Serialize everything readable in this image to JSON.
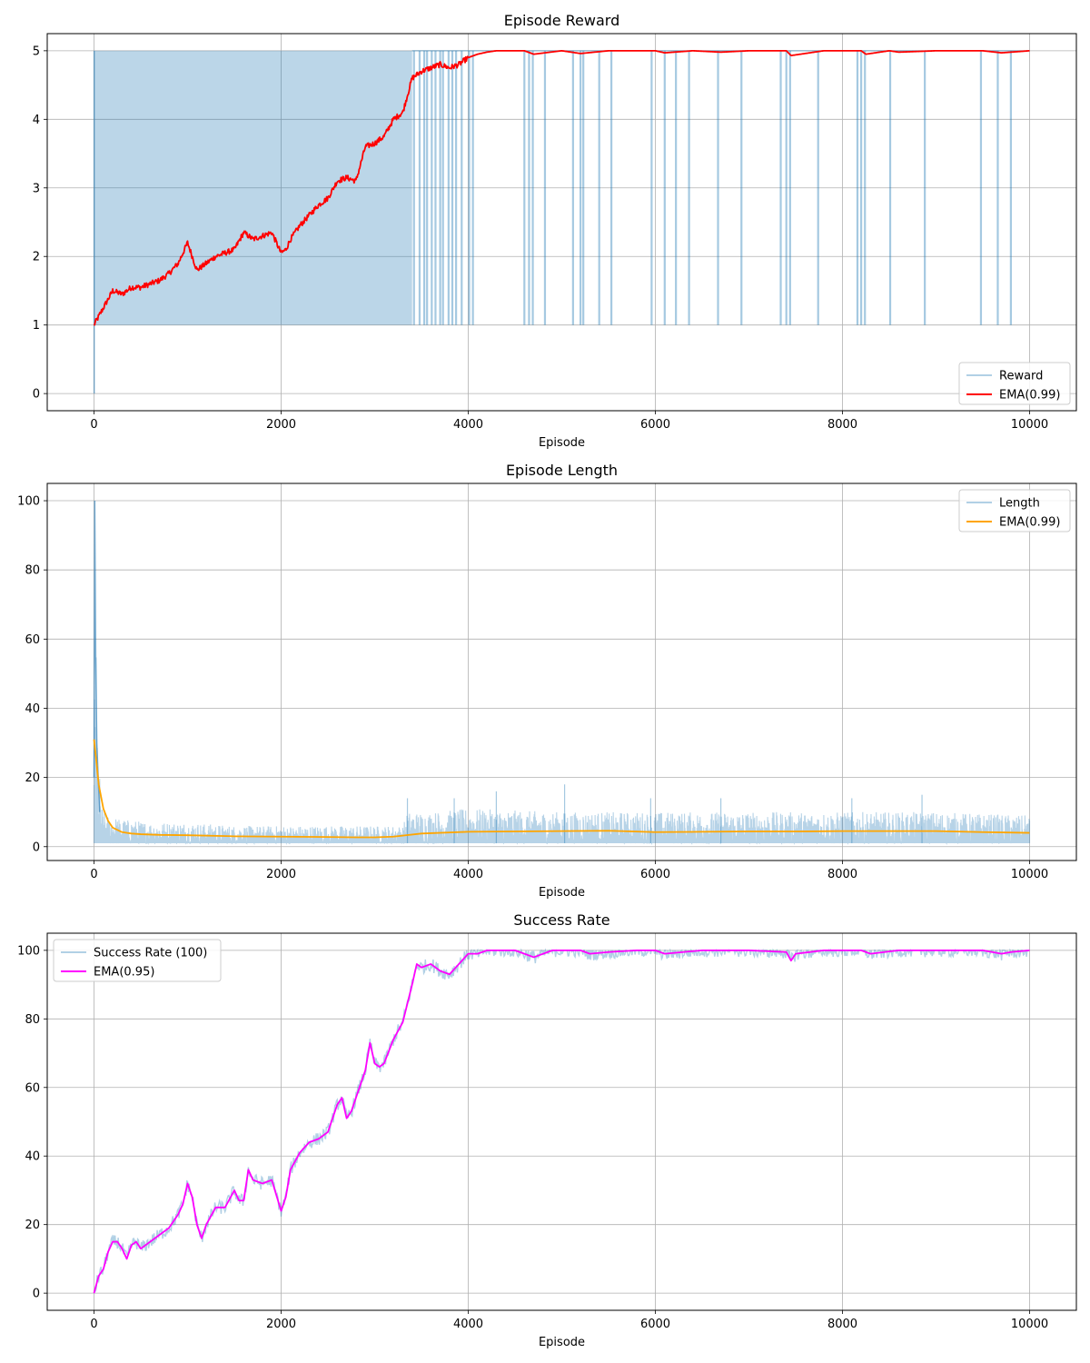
{
  "chart_data": [
    {
      "type": "line",
      "title": "Episode Reward",
      "xlabel": "Episode",
      "ylabel": "",
      "xlim": [
        -500,
        10500
      ],
      "ylim": [
        -0.25,
        5.25
      ],
      "xticks": [
        0,
        2000,
        4000,
        6000,
        8000,
        10000
      ],
      "yticks": [
        0,
        1,
        2,
        3,
        4,
        5
      ],
      "grid": true,
      "legend_position": "lower-right",
      "raw_pattern": "binary",
      "raw_low": 1,
      "raw_high": 5,
      "dense_until": 3400,
      "failure_episodes": [
        3420,
        3480,
        3530,
        3560,
        3610,
        3650,
        3700,
        3730,
        3790,
        3830,
        3870,
        3930,
        4010,
        4050,
        4600,
        4650,
        4690,
        4820,
        5120,
        5200,
        5230,
        5400,
        5530,
        5960,
        6100,
        6220,
        6360,
        6670,
        6920,
        7340,
        7400,
        7440,
        7740,
        8160,
        8200,
        8240,
        8510,
        8880,
        9480,
        9660,
        9800
      ],
      "series": [
        {
          "name": "Reward",
          "role": "raw",
          "color": "#1f77b4",
          "alpha": 0.3
        },
        {
          "name": "EMA(0.99)",
          "role": "ema",
          "color": "#ff0000",
          "x": [
            0,
            100,
            200,
            300,
            400,
            500,
            600,
            700,
            800,
            900,
            1000,
            1100,
            1200,
            1300,
            1400,
            1500,
            1600,
            1700,
            1800,
            1900,
            2000,
            2050,
            2100,
            2200,
            2300,
            2400,
            2500,
            2600,
            2700,
            2800,
            2900,
            3000,
            3100,
            3200,
            3300,
            3400,
            3500,
            3600,
            3700,
            3800,
            3900,
            4000,
            4100,
            4200,
            4300,
            4400,
            4600,
            4700,
            5000,
            5200,
            5500,
            6000,
            6100,
            6400,
            6700,
            7000,
            7400,
            7450,
            7800,
            8200,
            8250,
            8500,
            8600,
            9000,
            9500,
            9700,
            9800,
            10000
          ],
          "y": [
            1.0,
            1.25,
            1.5,
            1.45,
            1.55,
            1.55,
            1.6,
            1.65,
            1.75,
            1.9,
            2.2,
            1.8,
            1.9,
            2.0,
            2.05,
            2.1,
            2.35,
            2.25,
            2.3,
            2.35,
            2.05,
            2.1,
            2.25,
            2.45,
            2.6,
            2.75,
            2.85,
            3.1,
            3.15,
            3.1,
            3.6,
            3.65,
            3.75,
            4.0,
            4.1,
            4.6,
            4.7,
            4.75,
            4.8,
            4.75,
            4.8,
            4.9,
            4.95,
            4.98,
            5.0,
            5.0,
            5.0,
            4.95,
            5.0,
            4.96,
            5.0,
            5.0,
            4.97,
            5.0,
            4.98,
            5.0,
            5.0,
            4.93,
            5.0,
            5.0,
            4.95,
            5.0,
            4.98,
            5.0,
            5.0,
            4.97,
            4.98,
            5.0
          ]
        }
      ]
    },
    {
      "type": "line",
      "title": "Episode Length",
      "xlabel": "Episode",
      "ylabel": "",
      "xlim": [
        -500,
        10500
      ],
      "ylim": [
        -4,
        105
      ],
      "xticks": [
        0,
        2000,
        4000,
        6000,
        8000,
        10000
      ],
      "yticks": [
        0,
        20,
        40,
        60,
        80,
        100
      ],
      "grid": true,
      "legend_position": "upper-right",
      "raw_pattern": "noisy",
      "raw_envelope": {
        "x": [
          0,
          10,
          20,
          40,
          80,
          150,
          300,
          600,
          1000,
          1500,
          2000,
          2500,
          3000,
          3300,
          3350,
          3600,
          4000,
          5000,
          6000,
          7000,
          8000,
          9000,
          10000
        ],
        "y": [
          20,
          100,
          60,
          30,
          12,
          9,
          8,
          7,
          7,
          6,
          6,
          6,
          6,
          6,
          10,
          10,
          11,
          10,
          10,
          10,
          10,
          10,
          9
        ]
      },
      "raw_spikes": [
        [
          3350,
          14
        ],
        [
          3850,
          14
        ],
        [
          4300,
          16
        ],
        [
          5030,
          18
        ],
        [
          5950,
          14
        ],
        [
          6700,
          14
        ],
        [
          8100,
          14
        ],
        [
          8850,
          15
        ]
      ],
      "series": [
        {
          "name": "Length",
          "role": "raw",
          "color": "#1f77b4",
          "alpha": 0.3
        },
        {
          "name": "EMA(0.99)",
          "role": "ema",
          "color": "#ffa500",
          "x": [
            0,
            20,
            50,
            100,
            150,
            200,
            300,
            400,
            500,
            700,
            1000,
            1500,
            2000,
            2500,
            2800,
            3000,
            3200,
            3500,
            4000,
            4500,
            5000,
            5500,
            6000,
            6500,
            7000,
            7500,
            8000,
            8500,
            9000,
            9500,
            10000
          ],
          "y": [
            31,
            26,
            18,
            11,
            7.5,
            5.5,
            4.2,
            3.8,
            3.6,
            3.4,
            3.3,
            3.0,
            2.9,
            2.8,
            2.7,
            2.7,
            2.9,
            3.8,
            4.3,
            4.4,
            4.5,
            4.6,
            4.2,
            4.3,
            4.4,
            4.4,
            4.5,
            4.5,
            4.5,
            4.2,
            4.0
          ]
        }
      ]
    },
    {
      "type": "line",
      "title": "Success Rate",
      "xlabel": "Episode",
      "ylabel": "",
      "xlim": [
        -500,
        10500
      ],
      "ylim": [
        -5,
        105
      ],
      "xticks": [
        0,
        2000,
        4000,
        6000,
        8000,
        10000
      ],
      "yticks": [
        0,
        20,
        40,
        60,
        80,
        100
      ],
      "grid": true,
      "legend_position": "upper-left",
      "series": [
        {
          "name": "Success Rate (100)",
          "role": "raw",
          "color": "#1f77b4",
          "alpha": 0.3
        },
        {
          "name": "EMA(0.95)",
          "role": "ema",
          "color": "#ff00ff",
          "x": [
            0,
            50,
            100,
            150,
            200,
            250,
            300,
            350,
            400,
            450,
            500,
            600,
            700,
            800,
            900,
            950,
            1000,
            1050,
            1100,
            1150,
            1200,
            1300,
            1400,
            1500,
            1550,
            1600,
            1650,
            1700,
            1800,
            1900,
            2000,
            2050,
            2100,
            2200,
            2300,
            2400,
            2500,
            2600,
            2650,
            2700,
            2750,
            2800,
            2900,
            2950,
            3000,
            3050,
            3100,
            3200,
            3300,
            3400,
            3450,
            3500,
            3600,
            3700,
            3800,
            3900,
            4000,
            4100,
            4200,
            4300,
            4500,
            4600,
            4700,
            4900,
            5200,
            5300,
            5500,
            5800,
            6000,
            6100,
            6500,
            7000,
            7400,
            7450,
            7500,
            7800,
            8000,
            8200,
            8300,
            8600,
            9000,
            9500,
            9700,
            9800,
            10000
          ],
          "y": [
            0,
            5,
            7,
            12,
            15,
            15,
            13,
            10,
            14,
            15,
            13,
            15,
            17,
            19,
            23,
            26,
            32,
            28,
            20,
            16,
            20,
            25,
            25,
            30,
            27,
            27,
            36,
            33,
            32,
            33,
            24,
            28,
            36,
            41,
            44,
            45,
            47,
            55,
            57,
            51,
            53,
            57,
            65,
            73,
            67,
            66,
            67,
            74,
            79,
            90,
            96,
            95,
            96,
            94,
            93,
            96,
            99,
            99,
            100,
            100,
            100,
            99,
            98,
            100,
            100,
            99,
            99.5,
            100,
            100,
            99,
            100,
            100,
            99.5,
            97,
            99,
            100,
            100,
            100,
            99,
            100,
            100,
            100,
            99,
            99.5,
            100
          ]
        }
      ]
    }
  ]
}
